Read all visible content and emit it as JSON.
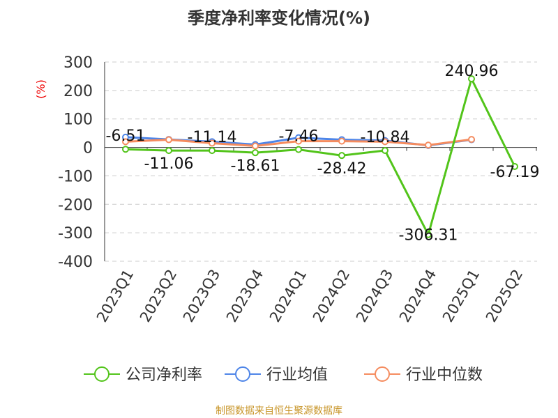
{
  "chart_data": {
    "type": "line",
    "title": "季度净利率变化情况(%)",
    "ylabel": "(%)",
    "ylim": [
      -400,
      300
    ],
    "yticks": [
      300,
      200,
      100,
      0,
      -100,
      -200,
      -300,
      -400
    ],
    "categories": [
      "2023Q1",
      "2023Q2",
      "2023Q3",
      "2023Q4",
      "2024Q1",
      "2024Q2",
      "2024Q3",
      "2024Q4",
      "2025Q1",
      "2025Q2"
    ],
    "series": [
      {
        "name": "公司净利率",
        "color": "#52c41a",
        "values": [
          -6.51,
          -11.06,
          -11.14,
          -18.61,
          -7.46,
          -28.42,
          -10.84,
          -306.31,
          240.96,
          -67.19
        ],
        "labels": [
          "-6.51",
          "-11.06",
          "-11.14",
          "-18.61",
          "-7.46",
          "-28.42",
          "-10.84",
          "-306.31",
          "240.96",
          "-67.19"
        ]
      },
      {
        "name": "行业均值",
        "color": "#4e85e8",
        "values": [
          36,
          28,
          20,
          10,
          34,
          27,
          24,
          7,
          27,
          null
        ]
      },
      {
        "name": "行业中位数",
        "color": "#f58c5f",
        "values": [
          20,
          27,
          15,
          5,
          22,
          22,
          20,
          8,
          28,
          null
        ]
      }
    ],
    "grid": true,
    "legend": "bottom"
  },
  "source": "制图数据来自恒生聚源数据库"
}
